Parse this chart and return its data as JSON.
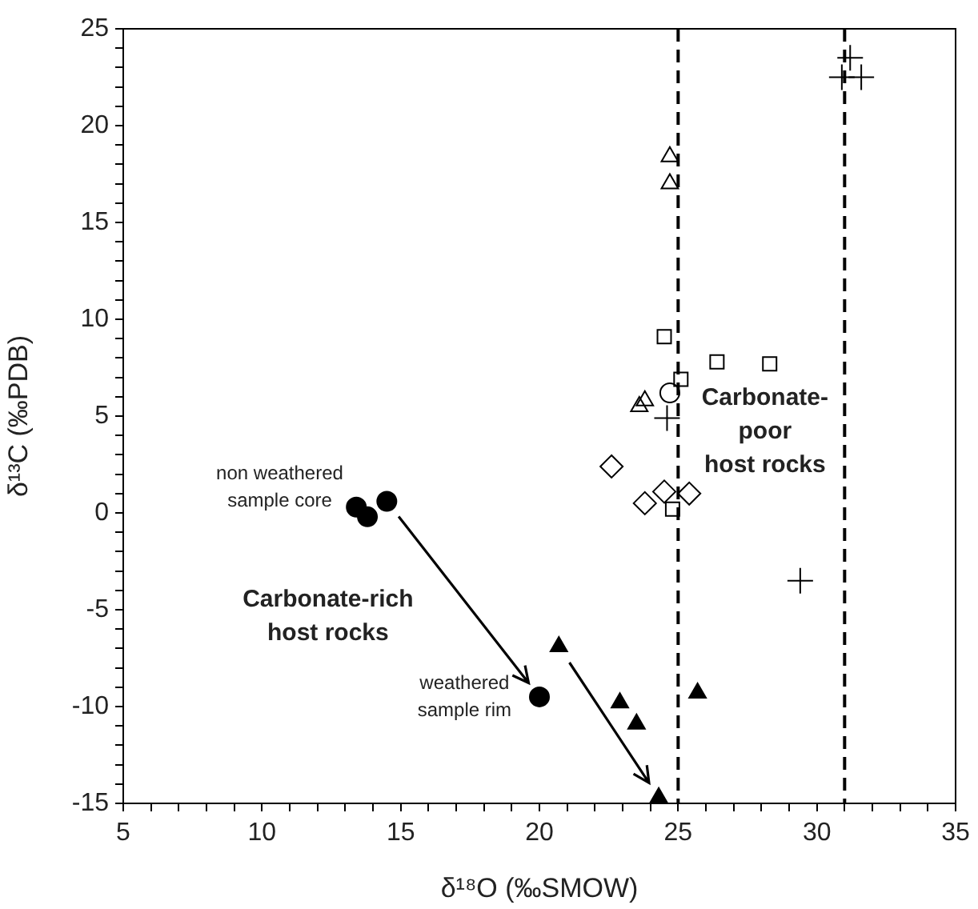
{
  "chart_data": {
    "type": "scatter",
    "xlabel": "δ¹⁸O (‰SMOW)",
    "ylabel": "δ¹³C (‰PDB)",
    "xlim": [
      5,
      35
    ],
    "ylim": [
      -15,
      25
    ],
    "xticks": [
      5,
      {
        "value": 6,
        "label": null
      },
      {
        "value": 7,
        "label": null
      },
      {
        "value": 8,
        "label": null
      },
      {
        "value": 9,
        "label": null
      },
      10,
      {
        "value": 11,
        "label": null
      },
      {
        "value": 12,
        "label": null
      },
      {
        "value": 13,
        "label": null
      },
      {
        "value": 14,
        "label": null
      },
      15,
      {
        "value": 16,
        "label": null
      },
      {
        "value": 17,
        "label": null
      },
      {
        "value": 18,
        "label": null
      },
      {
        "value": 19,
        "label": null
      },
      20,
      {
        "value": 21,
        "label": null
      },
      {
        "value": 22,
        "label": null
      },
      {
        "value": 23,
        "label": null
      },
      {
        "value": 24,
        "label": null
      },
      25,
      {
        "value": 26,
        "label": null
      },
      {
        "value": 27,
        "label": null
      },
      {
        "value": 28,
        "label": null
      },
      {
        "value": 29,
        "label": null
      },
      30,
      {
        "value": 31,
        "label": null
      },
      {
        "value": 32,
        "label": null
      },
      {
        "value": 33,
        "label": null
      },
      {
        "value": 34,
        "label": null
      },
      35
    ],
    "yticks": [
      -15,
      {
        "value": -14,
        "label": null
      },
      {
        "value": -13,
        "label": null
      },
      {
        "value": -12,
        "label": null
      },
      {
        "value": -11,
        "label": null
      },
      -10,
      {
        "value": -9,
        "label": null
      },
      {
        "value": -8,
        "label": null
      },
      {
        "value": -7,
        "label": null
      },
      {
        "value": -6,
        "label": null
      },
      -5,
      {
        "value": -4,
        "label": null
      },
      {
        "value": -3,
        "label": null
      },
      {
        "value": -2,
        "label": null
      },
      {
        "value": -1,
        "label": null
      },
      0,
      {
        "value": 1,
        "label": null
      },
      {
        "value": 2,
        "label": null
      },
      {
        "value": 3,
        "label": null
      },
      {
        "value": 4,
        "label": null
      },
      5,
      {
        "value": 6,
        "label": null
      },
      {
        "value": 7,
        "label": null
      },
      {
        "value": 8,
        "label": null
      },
      {
        "value": 9,
        "label": null
      },
      10,
      {
        "value": 11,
        "label": null
      },
      {
        "value": 12,
        "label": null
      },
      {
        "value": 13,
        "label": null
      },
      {
        "value": 14,
        "label": null
      },
      15,
      {
        "value": 16,
        "label": null
      },
      {
        "value": 17,
        "label": null
      },
      {
        "value": 18,
        "label": null
      },
      {
        "value": 19,
        "label": null
      },
      20,
      {
        "value": 21,
        "label": null
      },
      {
        "value": 22,
        "label": null
      },
      {
        "value": 23,
        "label": null
      },
      {
        "value": 24,
        "label": null
      },
      25
    ],
    "grid": false,
    "legend": false,
    "series": [
      {
        "color": "#000000",
        "marker": "circle",
        "x": [
          13.4,
          13.8,
          14.5,
          20.0
        ],
        "values": [
          0.3,
          -0.2,
          0.6,
          -9.5
        ]
      },
      {
        "color": "#000000",
        "marker": "triangle",
        "x": [
          20.7,
          22.9,
          23.5,
          25.7,
          24.3
        ],
        "values": [
          -6.9,
          -9.8,
          -10.9,
          -9.3,
          -14.7
        ]
      },
      {
        "color": "#000000",
        "marker": "triangle",
        "x": [
          24.7,
          24.7,
          23.6,
          23.8
        ],
        "values": [
          18.4,
          17.0,
          5.5,
          5.8
        ]
      },
      {
        "color": "#000000",
        "marker": "square",
        "x": [
          24.5,
          26.4,
          28.3,
          25.1,
          24.8
        ],
        "values": [
          9.1,
          7.8,
          7.7,
          6.9,
          0.2
        ]
      },
      {
        "color": "#000000",
        "marker": "diamond",
        "x": [
          22.6,
          23.8,
          24.5,
          25.4
        ],
        "values": [
          2.4,
          0.5,
          1.1,
          1.0
        ]
      },
      {
        "color": "#000000",
        "marker": "circle",
        "x": [
          24.7
        ],
        "values": [
          6.2
        ]
      },
      {
        "color": "#000000",
        "marker": "cross",
        "x": [
          31.2,
          30.9,
          31.6,
          24.6,
          29.4
        ],
        "values": [
          23.5,
          22.5,
          22.5,
          4.9,
          -3.5
        ]
      }
    ],
    "ref_lines": [
      {
        "axis": "x",
        "value": 25,
        "line_style": "dashed",
        "color": "#000000"
      },
      {
        "axis": "x",
        "value": 31,
        "line_style": "dashed",
        "color": "#000000"
      }
    ],
    "annotations": [
      "non weathered\nsample core",
      "Carbonate-rich\nhost rocks",
      "weathered\nsample rim",
      "Carbonate-\npoor\nhost rocks"
    ]
  }
}
